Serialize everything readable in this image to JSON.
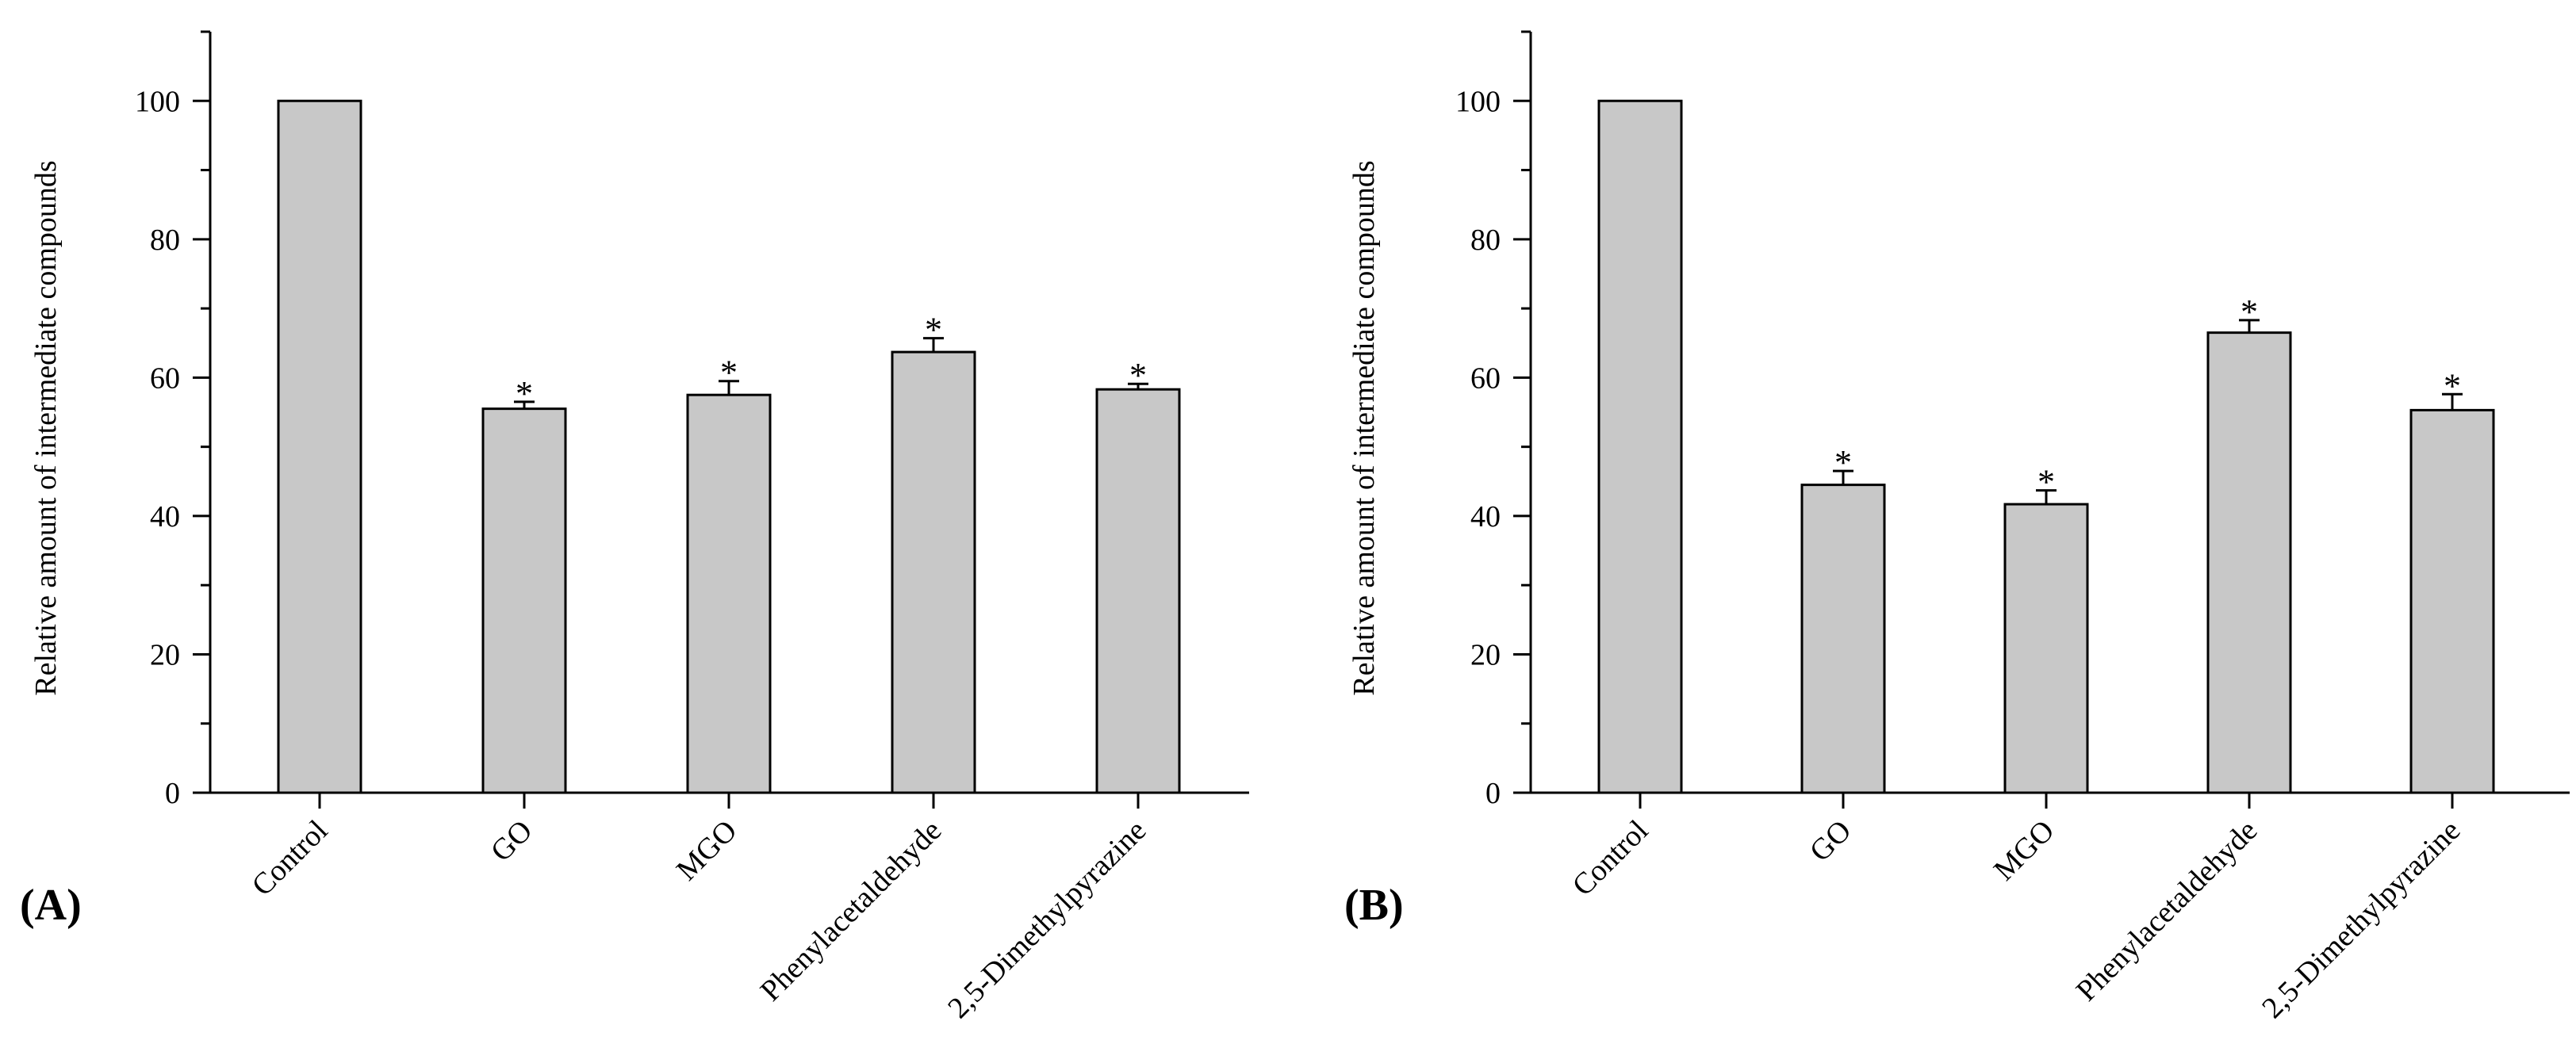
{
  "chart_data": [
    {
      "type": "bar",
      "panel_label": "(A)",
      "categories": [
        "Control",
        "GO",
        "MGO",
        "Phenylacetaldehyde",
        "2,5-Dimethylpyrazine"
      ],
      "series": [
        {
          "name": "Relative amount",
          "values": [
            100,
            55.5,
            57.5,
            63.7,
            58.3
          ],
          "errors": [
            0,
            1.0,
            2.0,
            2.0,
            0.8
          ],
          "significance": [
            "",
            "*",
            "*",
            "*",
            "*"
          ]
        }
      ],
      "ylabel": "Relative amount of intermediate compounds",
      "xlabel": "",
      "ylim": [
        0,
        110
      ],
      "yticks": [
        0,
        20,
        40,
        60,
        80,
        100
      ],
      "bar_color": "#c8c8c8",
      "edge_color": "#000000"
    },
    {
      "type": "bar",
      "panel_label": "(B)",
      "categories": [
        "Control",
        "GO",
        "MGO",
        "Phenylacetaldehyde",
        "2,5-Dimethylpyrazine"
      ],
      "series": [
        {
          "name": "Relative amount",
          "values": [
            100,
            44.5,
            41.7,
            66.5,
            55.3
          ],
          "errors": [
            0,
            2.0,
            2.0,
            1.8,
            2.3
          ],
          "significance": [
            "",
            "*",
            "*",
            "*",
            "*"
          ]
        }
      ],
      "ylabel": "Relative amount of intermediate compounds",
      "xlabel": "",
      "ylim": [
        0,
        110
      ],
      "yticks": [
        0,
        20,
        40,
        60,
        80,
        100
      ],
      "bar_color": "#c8c8c8",
      "edge_color": "#000000"
    }
  ]
}
